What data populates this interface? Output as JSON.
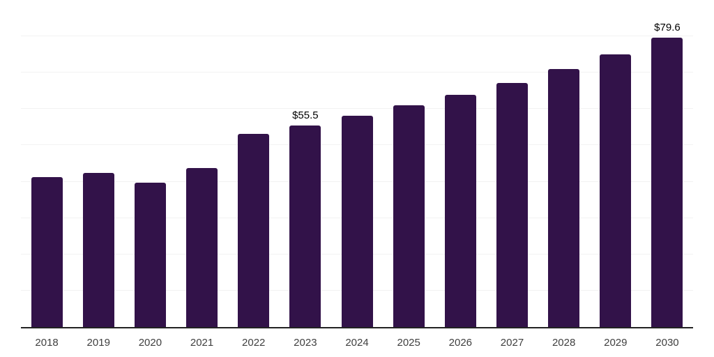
{
  "page": {
    "background": "#ffffff"
  },
  "chart_data": {
    "type": "bar",
    "title": "",
    "xlabel": "",
    "ylabel": "",
    "categories": [
      "2018",
      "2019",
      "2020",
      "2021",
      "2022",
      "2023",
      "2024",
      "2025",
      "2026",
      "2027",
      "2028",
      "2029",
      "2030"
    ],
    "values": [
      41.2,
      42.4,
      39.8,
      43.7,
      53.1,
      55.5,
      58.1,
      61.0,
      63.9,
      67.1,
      71.1,
      75.0,
      79.6
    ],
    "data_labels": {
      "2023": "$55.5",
      "2030": "$79.6"
    },
    "ylim": [
      0,
      90
    ],
    "grid_step": 10,
    "grid": true,
    "legend": false,
    "colors": {
      "bar": "#321249",
      "gridline": "#f2f2f2",
      "axis_line": "#222222",
      "tick_label": "#404040",
      "value_label": "#000000",
      "background": "#ffffff"
    }
  }
}
